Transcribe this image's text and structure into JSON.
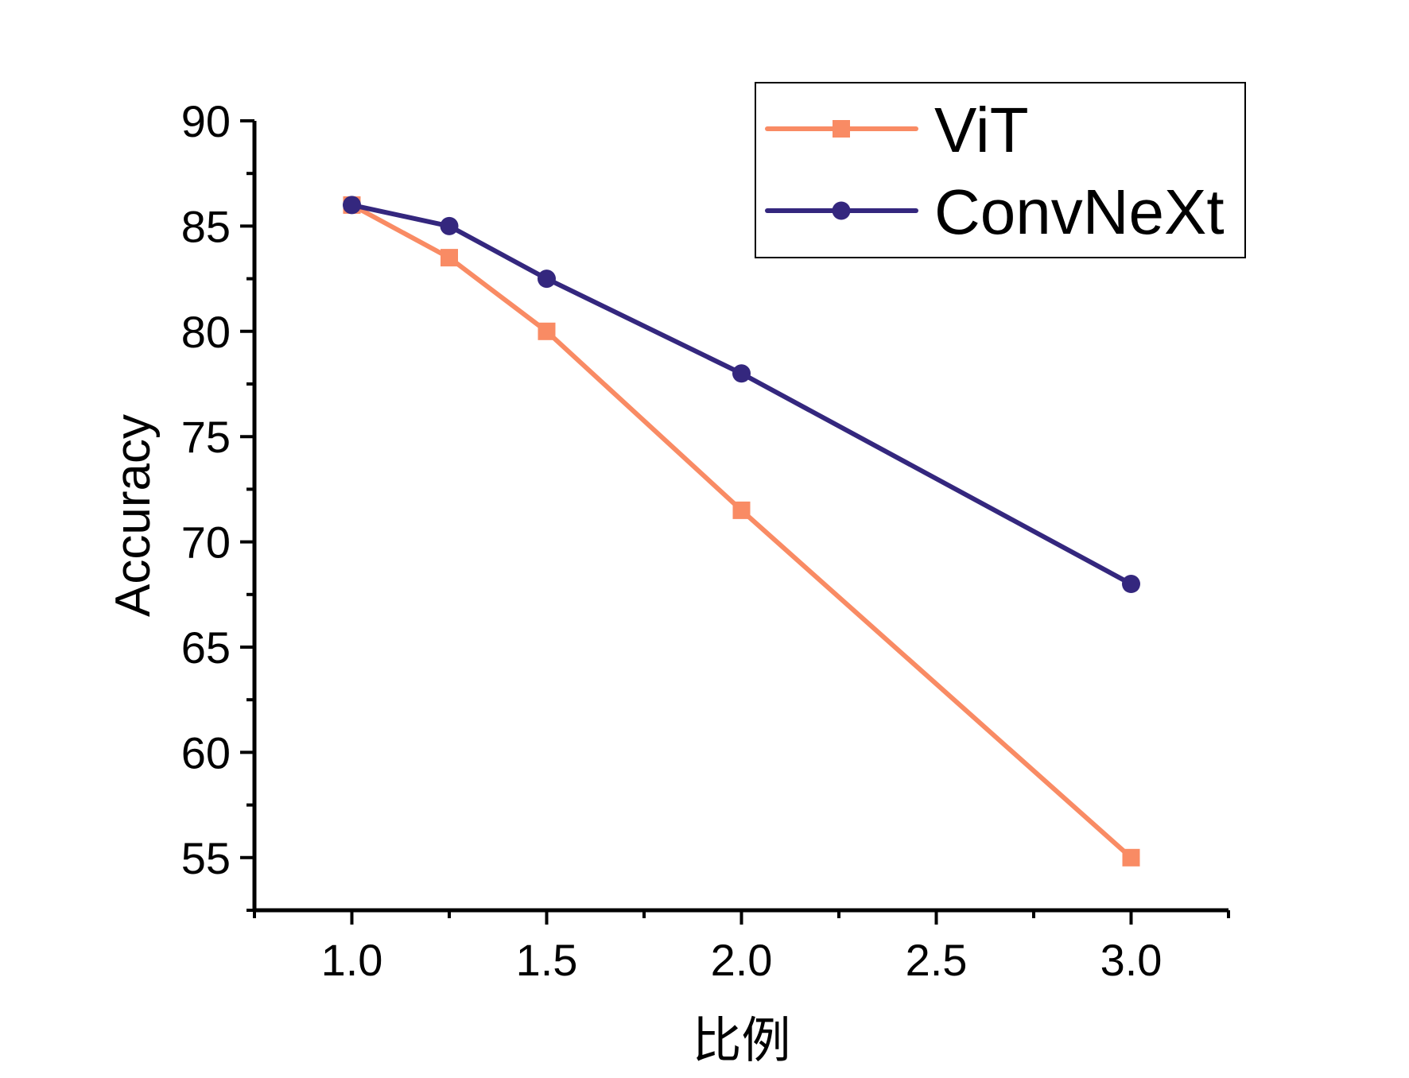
{
  "chart_data": {
    "type": "line",
    "title": "",
    "xlabel": "比例",
    "ylabel": "Accuracy",
    "xlim": [
      0.75,
      3.25
    ],
    "ylim": [
      52.5,
      90
    ],
    "xticks": [
      1.0,
      1.5,
      2.0,
      2.5,
      3.0
    ],
    "xtick_labels": [
      "1.0",
      "1.5",
      "2.0",
      "2.5",
      "3.0"
    ],
    "xminor_ticks": [
      0.75,
      1.25,
      1.75,
      2.25,
      2.75,
      3.25
    ],
    "yticks": [
      55,
      60,
      65,
      70,
      75,
      80,
      85,
      90
    ],
    "ytick_labels": [
      "55",
      "60",
      "65",
      "70",
      "75",
      "80",
      "85",
      "90"
    ],
    "yminor_ticks": [
      52.5,
      57.5,
      62.5,
      67.5,
      72.5,
      77.5,
      82.5,
      87.5
    ],
    "grid": false,
    "legend_position": "top-right",
    "series": [
      {
        "name": "ViT",
        "color": "#f98b64",
        "marker": "square",
        "x": [
          1.0,
          1.25,
          1.5,
          2.0,
          3.0
        ],
        "y": [
          86,
          83.5,
          80,
          71.5,
          55
        ]
      },
      {
        "name": "ConvNeXt",
        "color": "#34277e",
        "marker": "circle",
        "x": [
          1.0,
          1.25,
          1.5,
          2.0,
          3.0
        ],
        "y": [
          86,
          85,
          82.5,
          78,
          68
        ]
      }
    ]
  }
}
